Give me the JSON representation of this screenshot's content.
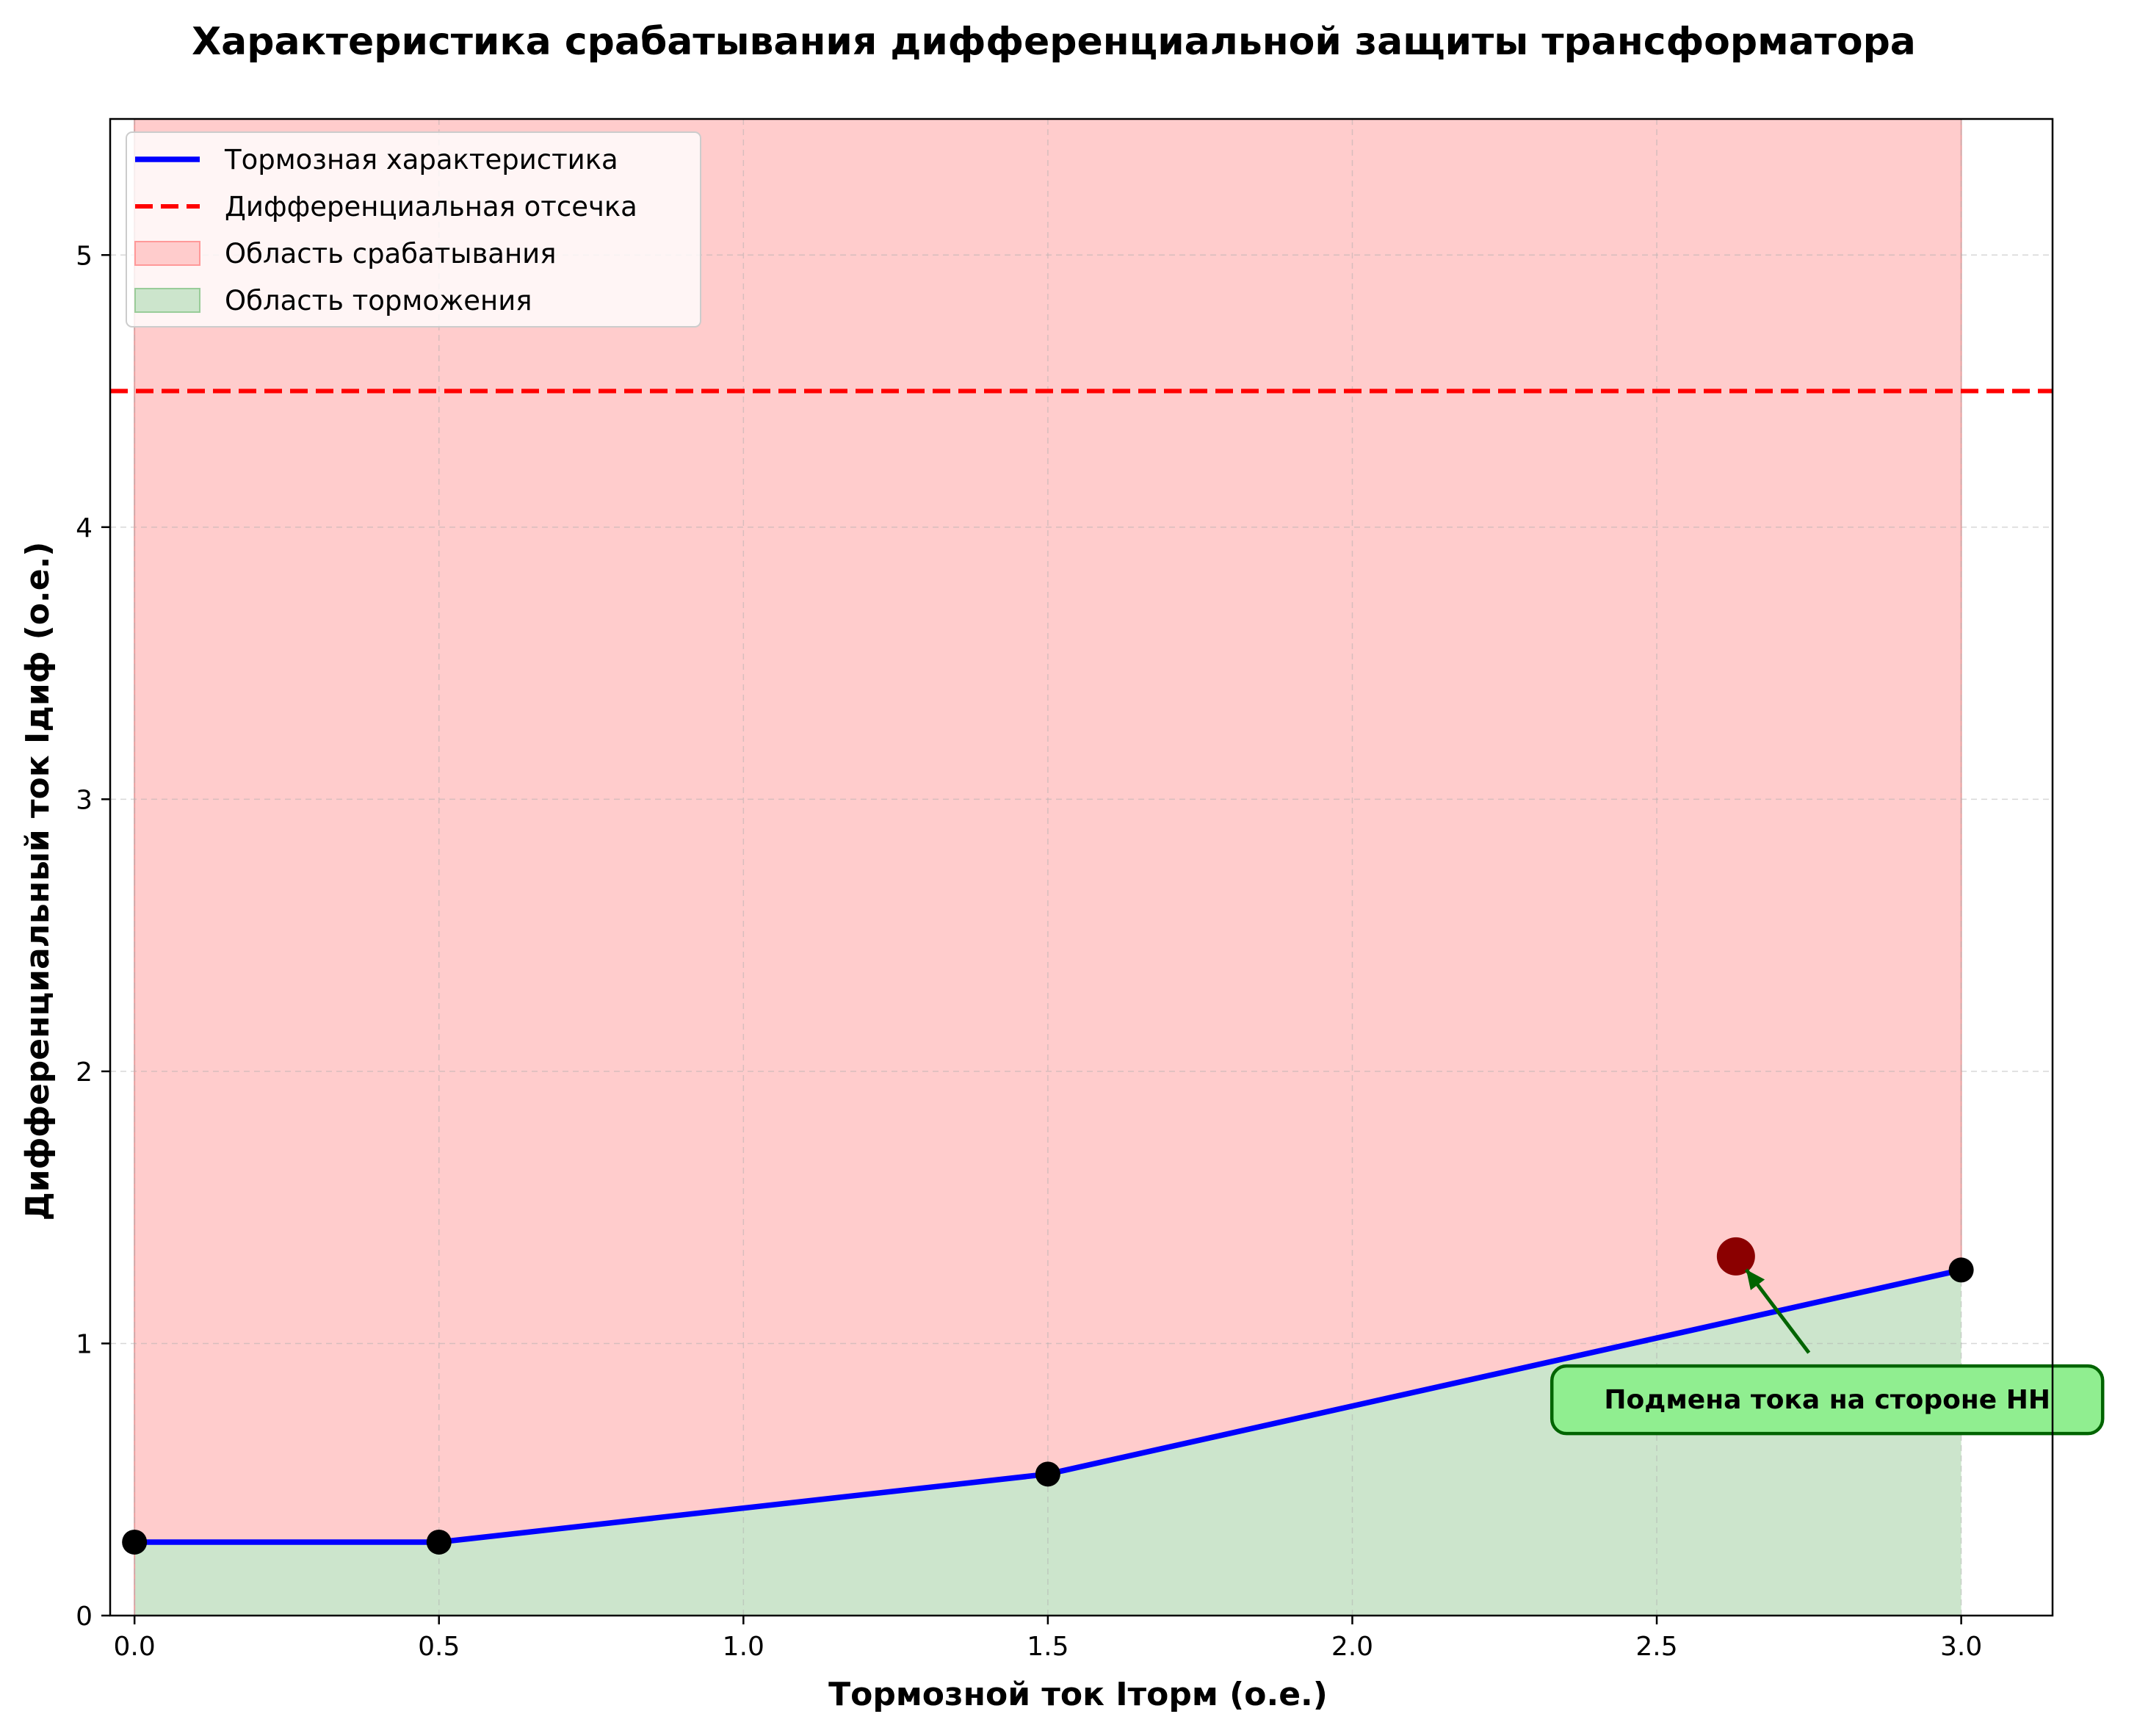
{
  "chart_data": {
    "type": "line",
    "title": "Характеристика срабатывания дифференциальной защиты трансформатора",
    "xlabel": "Тормозной ток Iторм (о.е.)",
    "ylabel": "Дифференциальный ток Iдиф (о.е.)",
    "xlim": [
      -0.04,
      3.15
    ],
    "ylim": [
      0,
      5.5
    ],
    "x_ticks": [
      0.0,
      0.5,
      1.0,
      1.5,
      2.0,
      2.5,
      3.0
    ],
    "x_tick_labels": [
      "0.0",
      "0.5",
      "1.0",
      "1.5",
      "2.0",
      "2.5",
      "3.0"
    ],
    "y_ticks": [
      0,
      1,
      2,
      3,
      4,
      5
    ],
    "y_tick_labels": [
      "0",
      "1",
      "2",
      "3",
      "4",
      "5"
    ],
    "grid": true,
    "legend_position": "top-left",
    "series": [
      {
        "name": "Тормозная характеристика",
        "type": "line",
        "color": "#0000ff",
        "x": [
          0.0,
          0.5,
          1.5,
          3.0
        ],
        "y": [
          0.27,
          0.27,
          0.52,
          1.27
        ]
      },
      {
        "name": "Дифференциальная отсечка",
        "type": "hline",
        "color": "#ff0000",
        "style": "dashed",
        "y": 4.5
      }
    ],
    "areas": [
      {
        "name": "Область срабатывания",
        "color": "#ffcccc",
        "from": "curve",
        "to": 5.5,
        "xrange": [
          0.0,
          3.0
        ]
      },
      {
        "name": "Область торможения",
        "color": "#cce5cc",
        "from": 0,
        "to": "curve",
        "xrange": [
          0.0,
          3.0
        ]
      }
    ],
    "markers": {
      "color": "#000000",
      "points": [
        {
          "x": 0.0,
          "y": 0.27
        },
        {
          "x": 0.5,
          "y": 0.27
        },
        {
          "x": 1.5,
          "y": 0.52
        },
        {
          "x": 3.0,
          "y": 1.27
        }
      ]
    },
    "highlight_point": {
      "x": 2.63,
      "y": 1.32,
      "color": "#8b0000"
    },
    "annotation": {
      "text": "Подмена тока на стороне НН",
      "box_color": "#90ee90",
      "edge_color": "#006400",
      "x": 2.78,
      "y": 0.82
    }
  }
}
